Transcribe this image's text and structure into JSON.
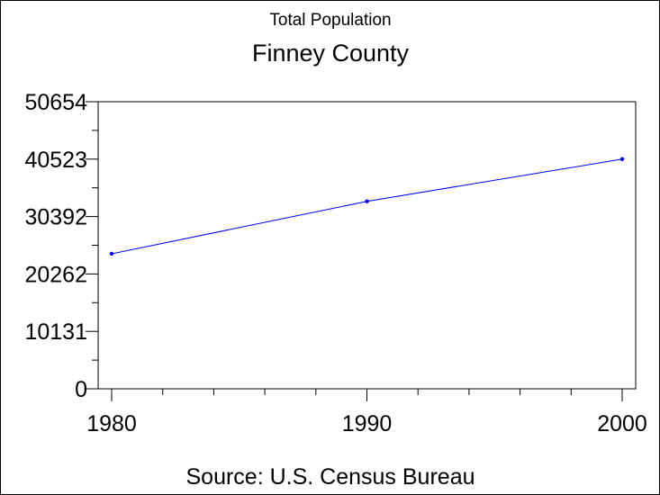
{
  "chart_data": {
    "type": "line",
    "title": "Finney County",
    "subtitle": "Total Population",
    "source": "Source: U.S. Census Bureau",
    "xlabel": "",
    "ylabel": "",
    "x": [
      1980,
      1990,
      2000
    ],
    "series": [
      {
        "values": [
          23825,
          33070,
          40523
        ],
        "color": "#0000ff"
      }
    ],
    "xlim": [
      1980,
      2000
    ],
    "ylim": [
      0,
      50654
    ],
    "x_ticks": [
      "1980",
      "1990",
      "2000"
    ],
    "y_ticks": [
      "0",
      "10131",
      "20262",
      "30392",
      "40523",
      "50654"
    ],
    "grid": false,
    "legend": "none"
  }
}
